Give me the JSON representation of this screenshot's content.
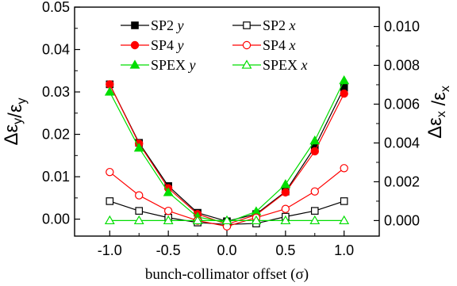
{
  "chart_data": {
    "type": "line",
    "x": [
      -1.0,
      -0.75,
      -0.5,
      -0.25,
      0.0,
      0.25,
      0.5,
      0.75,
      1.0
    ],
    "xlabel": "bunch-collimator offset (σ)",
    "ylabel": "Δε_y/ε_y",
    "y2label": "Δε_x /ε_x",
    "xlim": [
      -1.3,
      1.3
    ],
    "ylim": [
      -0.004,
      0.05
    ],
    "y2lim": [
      -0.0008,
      0.011
    ],
    "x_ticks": [
      -1.0,
      -0.5,
      0.0,
      0.5,
      1.0
    ],
    "x_tick_labels": [
      "-1.0",
      "-0.5",
      "0.0",
      "0.5",
      "1.0"
    ],
    "y_ticks": [
      0.0,
      0.01,
      0.02,
      0.03,
      0.04,
      0.05
    ],
    "y_tick_labels": [
      "0.00",
      "0.01",
      "0.02",
      "0.03",
      "0.04",
      "0.05"
    ],
    "y2_ticks": [
      0.0,
      0.002,
      0.004,
      0.006,
      0.008,
      0.01
    ],
    "y2_tick_labels": [
      "0.000",
      "0.002",
      "0.004",
      "0.006",
      "0.008",
      "0.010"
    ],
    "grid": false,
    "legend_position": "top-center",
    "series": [
      {
        "name": "SP2",
        "var": "y",
        "axis": "left",
        "color": "#000000",
        "marker": "square-filled",
        "values": [
          0.0318,
          0.018,
          0.0078,
          0.0015,
          -0.0005,
          0.0012,
          0.0065,
          0.017,
          0.031
        ]
      },
      {
        "name": "SP4",
        "var": "y",
        "axis": "left",
        "color": "#ff0000",
        "marker": "circle-filled",
        "values": [
          0.0318,
          0.0178,
          0.0073,
          0.0012,
          -0.0012,
          0.001,
          0.0063,
          0.016,
          0.0296
        ]
      },
      {
        "name": "SPEX",
        "var": "y",
        "axis": "left",
        "color": "#00dd00",
        "marker": "triangle-filled",
        "values": [
          0.03,
          0.0168,
          0.0063,
          0.0005,
          -0.0008,
          0.0018,
          0.0082,
          0.0185,
          0.0327
        ]
      },
      {
        "name": "SP2",
        "var": "x",
        "axis": "right",
        "color": "#000000",
        "marker": "square-open",
        "values": [
          0.001,
          0.0005,
          0.00015,
          -0.0001,
          -0.0002,
          -0.00015,
          0.0002,
          0.0005,
          0.001
        ]
      },
      {
        "name": "SP4",
        "var": "x",
        "axis": "right",
        "color": "#ff0000",
        "marker": "circle-open",
        "values": [
          0.0025,
          0.0013,
          0.0005,
          0.0,
          -0.0003,
          0.00015,
          0.0006,
          0.0015,
          0.0027
        ]
      },
      {
        "name": "SPEX",
        "var": "x",
        "axis": "right",
        "color": "#00dd00",
        "marker": "triangle-open",
        "values": [
          0.0,
          0.0,
          0.0,
          0.0,
          0.0,
          0.0,
          0.0,
          0.0,
          0.0
        ]
      }
    ]
  }
}
